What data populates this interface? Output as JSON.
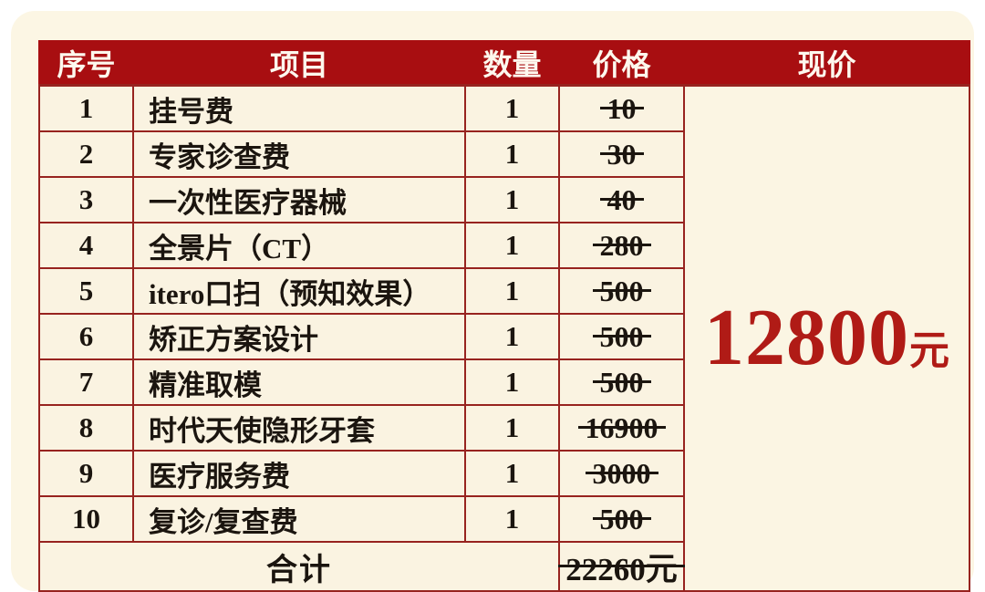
{
  "colors": {
    "page_background": "#ffffff",
    "card_background": "#fcf6e4",
    "header_background": "#a80e11",
    "grid_border": "#97231f",
    "cell_background": "#faf3e1",
    "body_text": "#1b150f",
    "highlight_red": "#b01b16"
  },
  "table": {
    "headers": {
      "index": "序号",
      "item": "项目",
      "quantity": "数量",
      "price": "价格",
      "current_price": "现价"
    },
    "rows": [
      {
        "index": "1",
        "item": "挂号费",
        "quantity": "1",
        "price": "10"
      },
      {
        "index": "2",
        "item": "专家诊查费",
        "quantity": "1",
        "price": "30"
      },
      {
        "index": "3",
        "item": "一次性医疗器械",
        "quantity": "1",
        "price": "40"
      },
      {
        "index": "4",
        "item": "全景片（CT）",
        "quantity": "1",
        "price": "280"
      },
      {
        "index": "5",
        "item": "itero口扫（预知效果）",
        "quantity": "1",
        "price": "500"
      },
      {
        "index": "6",
        "item": "矫正方案设计",
        "quantity": "1",
        "price": "500"
      },
      {
        "index": "7",
        "item": "精准取模",
        "quantity": "1",
        "price": "500"
      },
      {
        "index": "8",
        "item": "时代天使隐形牙套",
        "quantity": "1",
        "price": "16900"
      },
      {
        "index": "9",
        "item": "医疗服务费",
        "quantity": "1",
        "price": "3000"
      },
      {
        "index": "10",
        "item": "复诊/复查费",
        "quantity": "1",
        "price": "500"
      }
    ],
    "total": {
      "label": "合计",
      "price": "22260元"
    },
    "current_price": {
      "value": "12800",
      "unit": "元"
    }
  }
}
